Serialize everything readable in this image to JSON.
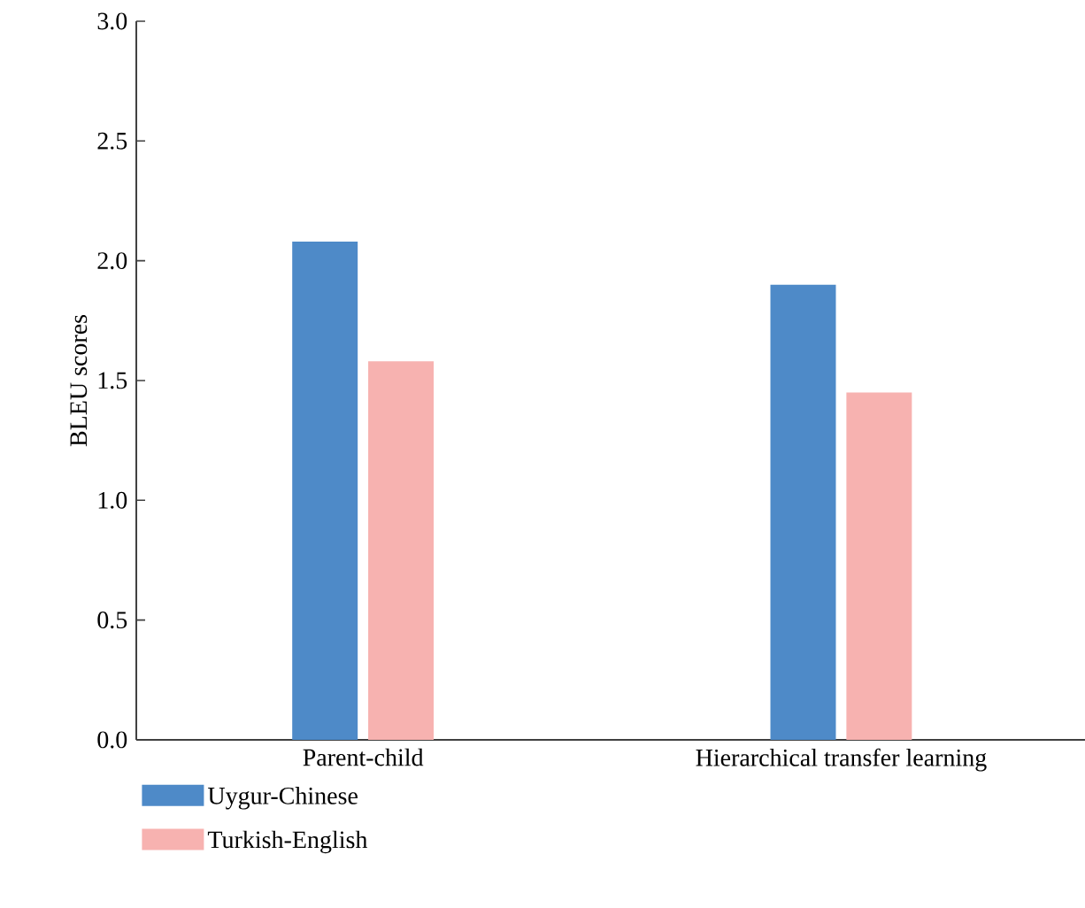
{
  "chart_data": {
    "type": "bar",
    "ylabel": "BLEU scores",
    "categories": [
      "Parent-child",
      "Hierarchical transfer learning"
    ],
    "series": [
      {
        "name": "Uygur-Chinese",
        "color": "#4e8ac8",
        "values": [
          2.08,
          1.9
        ]
      },
      {
        "name": "Turkish-English",
        "color": "#f7b2b0",
        "values": [
          1.58,
          1.45
        ]
      }
    ],
    "ylim": [
      0,
      3
    ],
    "yticks": [
      {
        "value": 0,
        "label": "0.0"
      },
      {
        "value": 0.5,
        "label": "0.5"
      },
      {
        "value": 1,
        "label": "1.0"
      },
      {
        "value": 1.5,
        "label": "1.5"
      },
      {
        "value": 2,
        "label": "2.0"
      },
      {
        "value": 2.5,
        "label": "2.5"
      },
      {
        "value": 3,
        "label": "3.0"
      }
    ],
    "grid": false,
    "legend": "bottom left"
  }
}
